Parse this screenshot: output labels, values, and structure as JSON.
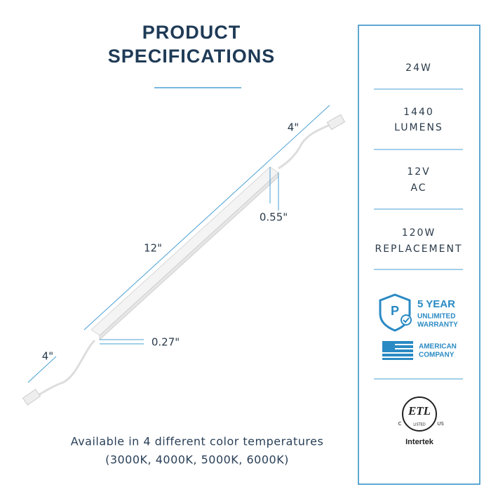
{
  "header": {
    "title_lines": [
      "PRODUCT",
      "SPECIFICATIONS"
    ]
  },
  "dimensions": {
    "cable_top": "4\"",
    "height": "0.55\"",
    "length": "12\"",
    "width": "0.27\"",
    "cable_bottom": "4\""
  },
  "footer": {
    "lines": [
      "Available in 4 different color temperatures",
      "(3000K, 4000K, 5000K, 6000K)"
    ]
  },
  "specs": [
    {
      "lines": [
        "24W"
      ]
    },
    {
      "lines": [
        "1440",
        "LUMENS"
      ]
    },
    {
      "lines": [
        "12V",
        "AC"
      ]
    },
    {
      "lines": [
        "120W",
        "REPLACEMENT"
      ]
    }
  ],
  "badges": {
    "warranty": [
      "5 YEAR",
      "UNLIMITED",
      "WARRANTY"
    ],
    "american": [
      "AMERICAN",
      "COMPANY"
    ],
    "certification": {
      "left": "C",
      "mark": "ETL",
      "listed": "LISTED",
      "right": "US",
      "brand": "Intertek"
    }
  }
}
